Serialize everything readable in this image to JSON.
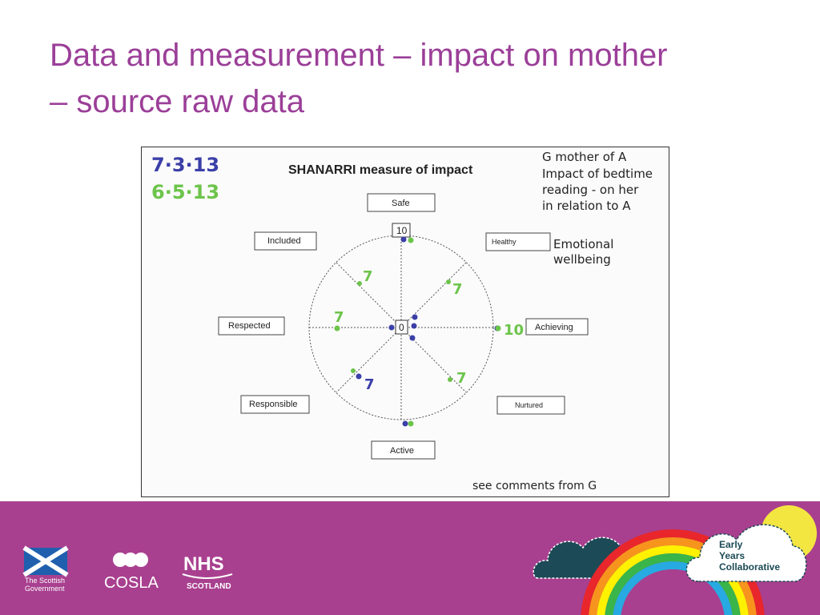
{
  "slide": {
    "title_line1": "Data and measurement – impact on mother",
    "title_line2": "– source raw data"
  },
  "form": {
    "heading": "SHANARRI measure of impact",
    "date_blue": "7·3·13",
    "date_green": "6·5·13",
    "note_lines": [
      "G mother of A",
      "Impact of bedtime",
      "reading - on her",
      "in relation to A"
    ],
    "emotional_note": [
      "Emotional",
      "wellbeing"
    ],
    "footer_note": "see comments from G",
    "scale_max": "10",
    "scale_min": "0",
    "labels": {
      "safe": "Safe",
      "healthy": "Healthy",
      "achieving": "Achieving",
      "nurtured": "Nurtured",
      "active": "Active",
      "responsible": "Responsible",
      "respected": "Respected",
      "included": "Included"
    },
    "scores": {
      "included": "7",
      "healthy": "7",
      "respected": "7",
      "achieving": "10",
      "responsible": "7",
      "nurtured": "7"
    },
    "colors": {
      "blue": "#3b3fa8",
      "green": "#6cc44a"
    }
  },
  "logos": {
    "scottish_gov_line1": "The Scottish",
    "scottish_gov_line2": "Government",
    "cosla": "COSLA",
    "nhs": "NHS",
    "nhs_sub": "SCOTLAND",
    "eyc_line1": "Early",
    "eyc_line2": "Years",
    "eyc_line3": "Collaborative"
  }
}
